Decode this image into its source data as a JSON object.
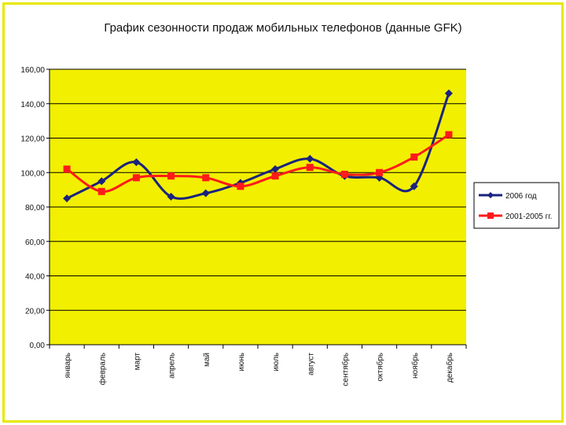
{
  "colors": {
    "plot_background": "#f2ef00",
    "border": "#e8e800",
    "gridline": "#000000",
    "series_2006": "#1a237e",
    "series_2001_2005": "#ff1a1a"
  },
  "chart_data": {
    "type": "line",
    "title": "График сезонности продаж мобильных телефонов (данные GFK)",
    "xlabel": "",
    "ylabel": "",
    "ylim": [
      0,
      160
    ],
    "yticks": [
      "0,00",
      "20,00",
      "40,00",
      "60,00",
      "80,00",
      "100,00",
      "120,00",
      "140,00",
      "160,00"
    ],
    "categories": [
      "январь",
      "февраль",
      "март",
      "апрель",
      "май",
      "июнь",
      "июль",
      "август",
      "сентябрь",
      "октябрь",
      "ноябрь",
      "декабрь"
    ],
    "grid": true,
    "legend_position": "right",
    "series": [
      {
        "name": "2006 год",
        "color": "#1a237e",
        "marker": "diamond",
        "values": [
          85,
          95,
          106,
          86,
          88,
          94,
          102,
          108,
          98,
          97,
          92,
          146
        ]
      },
      {
        "name": "2001-2005 гг.",
        "color": "#ff1a1a",
        "marker": "square",
        "values": [
          102,
          89,
          97,
          98,
          97,
          92,
          98,
          103,
          99,
          100,
          109,
          122
        ]
      }
    ]
  }
}
